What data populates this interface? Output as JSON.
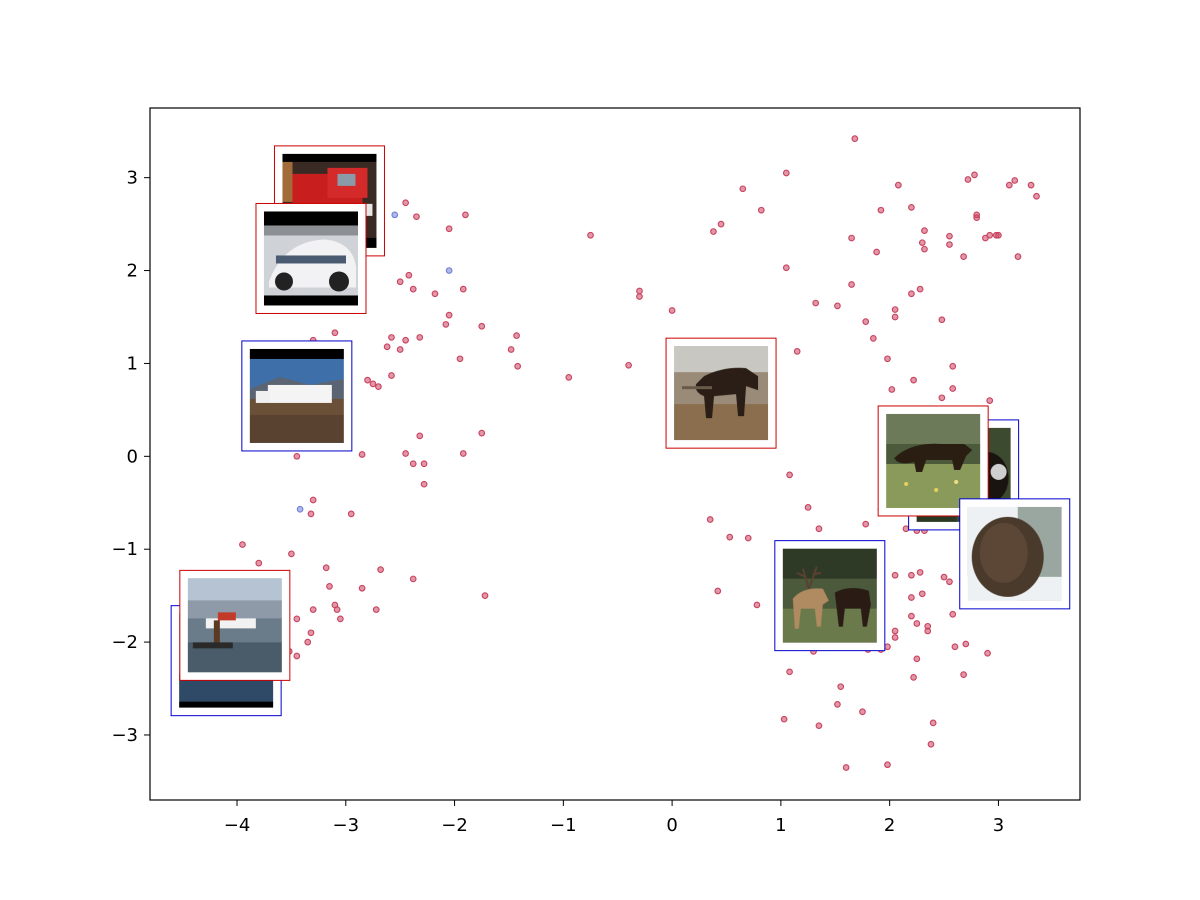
{
  "chart_data": {
    "type": "scatter",
    "title": "",
    "xlabel": "",
    "ylabel": "",
    "xlim": [
      -4.8,
      3.75
    ],
    "ylim": [
      -3.7,
      3.75
    ],
    "xticks": [
      {
        "value": -4,
        "label": "−4"
      },
      {
        "value": -3,
        "label": "−3"
      },
      {
        "value": -2,
        "label": "−2"
      },
      {
        "value": -1,
        "label": "−1"
      },
      {
        "value": 0,
        "label": "0"
      },
      {
        "value": 1,
        "label": "1"
      },
      {
        "value": 2,
        "label": "2"
      },
      {
        "value": 3,
        "label": "3"
      }
    ],
    "yticks": [
      {
        "value": -3,
        "label": "−3"
      },
      {
        "value": -2,
        "label": "−2"
      },
      {
        "value": -1,
        "label": "−1"
      },
      {
        "value": 0,
        "label": "0"
      },
      {
        "value": 1,
        "label": "1"
      },
      {
        "value": 2,
        "label": "2"
      },
      {
        "value": 3,
        "label": "3"
      }
    ],
    "grid": false,
    "legend": "none",
    "series": [
      {
        "color": "#c8425e",
        "points": [
          [
            -2.45,
            2.73
          ],
          [
            -2.35,
            2.58
          ],
          [
            -2.05,
            2.45
          ],
          [
            -1.9,
            2.6
          ],
          [
            -2.5,
            1.88
          ],
          [
            -2.42,
            1.95
          ],
          [
            -2.38,
            1.8
          ],
          [
            -2.18,
            1.75
          ],
          [
            -2.05,
            1.52
          ],
          [
            -1.92,
            1.8
          ],
          [
            -1.75,
            1.4
          ],
          [
            -2.08,
            1.42
          ],
          [
            -3.1,
            1.33
          ],
          [
            -3.3,
            1.25
          ],
          [
            -2.62,
            1.18
          ],
          [
            -2.58,
            1.28
          ],
          [
            -2.5,
            1.15
          ],
          [
            -2.45,
            1.25
          ],
          [
            -2.32,
            1.28
          ],
          [
            -1.95,
            1.05
          ],
          [
            -1.48,
            1.15
          ],
          [
            -1.43,
            1.3
          ],
          [
            -1.42,
            0.97
          ],
          [
            -2.58,
            0.87
          ],
          [
            -2.8,
            0.82
          ],
          [
            -2.75,
            0.78
          ],
          [
            -2.7,
            0.75
          ],
          [
            -2.32,
            0.22
          ],
          [
            -2.45,
            0.03
          ],
          [
            -2.38,
            -0.08
          ],
          [
            -2.28,
            -0.08
          ],
          [
            -2.28,
            -0.3
          ],
          [
            -1.92,
            0.03
          ],
          [
            -1.75,
            0.25
          ],
          [
            -2.85,
            0.02
          ],
          [
            -3.45,
            0.0
          ],
          [
            -3.3,
            -0.47
          ],
          [
            -3.32,
            -0.62
          ],
          [
            -2.95,
            -0.62
          ],
          [
            -3.95,
            -0.95
          ],
          [
            -3.8,
            -1.15
          ],
          [
            -3.5,
            -1.05
          ],
          [
            -3.18,
            -1.2
          ],
          [
            -3.15,
            -1.4
          ],
          [
            -2.85,
            -1.42
          ],
          [
            -3.3,
            -1.65
          ],
          [
            -3.1,
            -1.6
          ],
          [
            -3.08,
            -1.65
          ],
          [
            -3.05,
            -1.75
          ],
          [
            -2.72,
            -1.65
          ],
          [
            -2.68,
            -1.22
          ],
          [
            -2.38,
            -1.32
          ],
          [
            -1.72,
            -1.5
          ],
          [
            -3.45,
            -1.75
          ],
          [
            -3.32,
            -1.9
          ],
          [
            -3.45,
            -2.15
          ],
          [
            -3.52,
            -2.1
          ],
          [
            -3.35,
            -2.0
          ],
          [
            -0.95,
            0.85
          ],
          [
            -0.75,
            2.38
          ],
          [
            -0.4,
            0.98
          ],
          [
            -0.3,
            1.78
          ],
          [
            -0.3,
            1.72
          ],
          [
            0.0,
            1.57
          ],
          [
            0.38,
            2.42
          ],
          [
            0.45,
            2.5
          ],
          [
            0.65,
            2.88
          ],
          [
            0.82,
            2.65
          ],
          [
            1.05,
            3.05
          ],
          [
            1.05,
            2.03
          ],
          [
            1.15,
            1.13
          ],
          [
            1.32,
            1.65
          ],
          [
            1.52,
            1.62
          ],
          [
            1.65,
            2.35
          ],
          [
            1.68,
            3.42
          ],
          [
            1.65,
            1.85
          ],
          [
            1.78,
            1.45
          ],
          [
            1.85,
            1.27
          ],
          [
            1.88,
            2.2
          ],
          [
            1.92,
            2.65
          ],
          [
            1.98,
            1.05
          ],
          [
            2.02,
            0.72
          ],
          [
            2.05,
            1.58
          ],
          [
            2.05,
            1.5
          ],
          [
            2.08,
            2.92
          ],
          [
            2.2,
            2.68
          ],
          [
            2.2,
            1.75
          ],
          [
            2.22,
            0.82
          ],
          [
            2.28,
            1.8
          ],
          [
            2.3,
            2.3
          ],
          [
            2.32,
            2.23
          ],
          [
            2.32,
            2.43
          ],
          [
            2.48,
            1.47
          ],
          [
            2.55,
            2.28
          ],
          [
            2.55,
            2.37
          ],
          [
            2.58,
            0.97
          ],
          [
            2.58,
            0.73
          ],
          [
            2.68,
            2.15
          ],
          [
            2.72,
            2.98
          ],
          [
            2.78,
            3.03
          ],
          [
            2.8,
            2.57
          ],
          [
            2.8,
            2.6
          ],
          [
            2.88,
            2.35
          ],
          [
            2.92,
            2.38
          ],
          [
            2.98,
            2.38
          ],
          [
            3.0,
            2.38
          ],
          [
            3.1,
            2.92
          ],
          [
            3.15,
            2.97
          ],
          [
            3.18,
            2.15
          ],
          [
            3.3,
            2.92
          ],
          [
            3.35,
            2.8
          ],
          [
            2.92,
            0.6
          ],
          [
            2.48,
            0.63
          ],
          [
            2.05,
            0.47
          ],
          [
            1.08,
            -0.2
          ],
          [
            0.35,
            -0.68
          ],
          [
            0.53,
            -0.87
          ],
          [
            0.7,
            -0.88
          ],
          [
            0.42,
            -1.45
          ],
          [
            0.78,
            -1.6
          ],
          [
            1.25,
            -0.55
          ],
          [
            1.35,
            -0.78
          ],
          [
            1.78,
            -0.73
          ],
          [
            1.92,
            -0.57
          ],
          [
            2.0,
            -0.55
          ],
          [
            2.0,
            -0.13
          ],
          [
            2.08,
            -0.38
          ],
          [
            2.15,
            -0.78
          ],
          [
            2.25,
            -0.8
          ],
          [
            2.32,
            -0.8
          ],
          [
            2.5,
            -1.3
          ],
          [
            2.55,
            -1.35
          ],
          [
            2.58,
            -1.7
          ],
          [
            2.2,
            -1.52
          ],
          [
            2.2,
            -1.28
          ],
          [
            2.28,
            -1.25
          ],
          [
            2.3,
            -1.48
          ],
          [
            2.05,
            -1.28
          ],
          [
            2.05,
            -1.88
          ],
          [
            2.05,
            -1.95
          ],
          [
            2.2,
            -1.72
          ],
          [
            2.25,
            -1.8
          ],
          [
            2.35,
            -1.83
          ],
          [
            2.35,
            -1.88
          ],
          [
            2.25,
            -2.18
          ],
          [
            2.22,
            -2.38
          ],
          [
            2.6,
            -2.05
          ],
          [
            2.7,
            -2.02
          ],
          [
            2.9,
            -2.12
          ],
          [
            2.68,
            -2.35
          ],
          [
            2.4,
            -2.87
          ],
          [
            2.38,
            -3.1
          ],
          [
            1.98,
            -3.32
          ],
          [
            1.08,
            -2.32
          ],
          [
            1.03,
            -2.83
          ],
          [
            1.35,
            -2.9
          ],
          [
            1.52,
            -2.67
          ],
          [
            1.55,
            -2.48
          ],
          [
            1.75,
            -2.75
          ],
          [
            1.6,
            -3.35
          ],
          [
            1.3,
            -2.1
          ],
          [
            1.8,
            -2.08
          ],
          [
            1.92,
            -2.08
          ],
          [
            1.98,
            -2.05
          ]
        ]
      },
      {
        "color": "#6f7fd6",
        "points": [
          [
            -2.55,
            2.6
          ],
          [
            -2.05,
            2.0
          ],
          [
            -3.42,
            -0.57
          ]
        ]
      }
    ],
    "images": [
      {
        "name": "fire-engine",
        "x": -3.15,
        "y": 2.75,
        "frame": "#cc0000"
      },
      {
        "name": "race-car",
        "x": -3.32,
        "y": 2.13,
        "frame": "#cc0000"
      },
      {
        "name": "truck",
        "x": -3.45,
        "y": 0.65,
        "frame": "#0000cc"
      },
      {
        "name": "ocean",
        "x": -4.1,
        "y": -2.2,
        "frame": "#0000cc"
      },
      {
        "name": "seaplane",
        "x": -4.02,
        "y": -1.82,
        "frame": "#cc0000"
      },
      {
        "name": "horse",
        "x": 0.45,
        "y": 0.68,
        "frame": "#cc0000"
      },
      {
        "name": "bear-dark",
        "x": 2.68,
        "y": -0.2,
        "frame": "#0000cc"
      },
      {
        "name": "bear-meadow",
        "x": 2.4,
        "y": -0.05,
        "frame": "#cc0000"
      },
      {
        "name": "bear-fur",
        "x": 3.15,
        "y": -1.05,
        "frame": "#0000cc"
      },
      {
        "name": "elk",
        "x": 1.45,
        "y": -1.5,
        "frame": "#0000cc"
      }
    ]
  }
}
